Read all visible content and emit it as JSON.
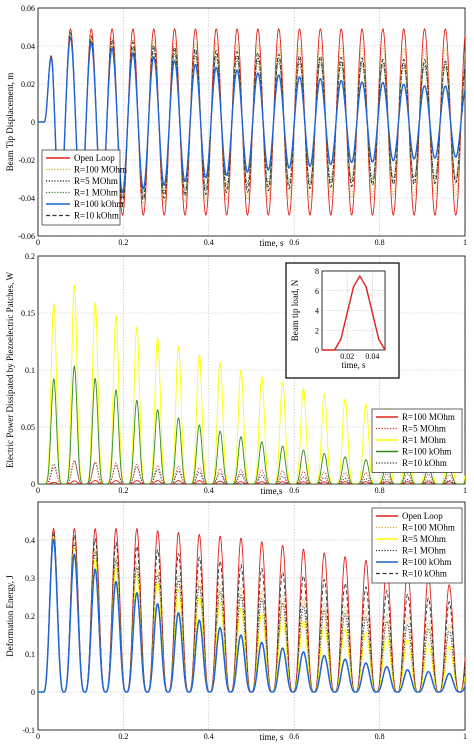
{
  "chart_data": [
    {
      "type": "line",
      "xlabel": "time, s",
      "ylabel": "Beam Tip Displacement, m",
      "xlim": [
        0,
        1
      ],
      "ylim": [
        -0.06,
        0.06
      ],
      "xticks": [
        "0",
        "0.2",
        "0.4",
        "0.6",
        "0.8",
        "1"
      ],
      "yticks": [
        "-0.06",
        "-0.04",
        "-0.02",
        "0",
        "0.02",
        "0.04",
        "0.06"
      ],
      "grid": true,
      "legend_position": "bottom-left",
      "oscillation_frequency_hz": 20.5,
      "series": [
        {
          "name": "Open Loop",
          "color": "#e0201b",
          "dash": "solid",
          "peak_values": [
            0.05,
            0.049,
            0.049,
            0.049,
            0.049,
            0.049,
            0.049,
            0.049,
            0.049,
            0.049,
            0.049,
            0.049,
            0.049,
            0.049,
            0.049,
            0.049,
            0.049,
            0.049,
            0.049,
            0.049,
            0.049
          ]
        },
        {
          "name": "R=100 MOhm",
          "color": "#d9a81e",
          "dash": "dotted",
          "peak_values": [
            0.05,
            0.048,
            0.046,
            0.045,
            0.044,
            0.043,
            0.043,
            0.042,
            0.042,
            0.041,
            0.041,
            0.041,
            0.04,
            0.04,
            0.04,
            0.04,
            0.04,
            0.039,
            0.039,
            0.039,
            0.039
          ]
        },
        {
          "name": "R=5 MOhm",
          "color": "#222222",
          "dash": "dotted",
          "peak_values": [
            0.05,
            0.047,
            0.044,
            0.042,
            0.04,
            0.039,
            0.038,
            0.037,
            0.036,
            0.035,
            0.034,
            0.034,
            0.033,
            0.033,
            0.032,
            0.032,
            0.032,
            0.031,
            0.031,
            0.031,
            0.031
          ]
        },
        {
          "name": "R=1 MOhm",
          "color": "#3a7d2a",
          "dash": "dotted",
          "peak_values": [
            0.05,
            0.047,
            0.044,
            0.041,
            0.039,
            0.037,
            0.036,
            0.035,
            0.034,
            0.033,
            0.032,
            0.032,
            0.031,
            0.031,
            0.03,
            0.03,
            0.03,
            0.029,
            0.029,
            0.029,
            0.029
          ]
        },
        {
          "name": "R=100 kOhm",
          "color": "#1e64d2",
          "dash": "solid",
          "peak_values": [
            0.05,
            0.046,
            0.043,
            0.04,
            0.037,
            0.035,
            0.033,
            0.031,
            0.029,
            0.028,
            0.026,
            0.025,
            0.024,
            0.023,
            0.022,
            0.021,
            0.021,
            0.02,
            0.019,
            0.019,
            0.018
          ]
        },
        {
          "name": "R=10 kOhm",
          "color": "#333333",
          "dash": "dashed",
          "peak_values": [
            0.05,
            0.048,
            0.046,
            0.044,
            0.043,
            0.041,
            0.04,
            0.039,
            0.038,
            0.037,
            0.037,
            0.036,
            0.035,
            0.035,
            0.034,
            0.034,
            0.033,
            0.033,
            0.033,
            0.032,
            0.032
          ]
        }
      ]
    },
    {
      "type": "line",
      "xlabel": "time,s",
      "ylabel": "Electric Power Dissipated by Piezoelectric Patches, W",
      "xlim": [
        0,
        1
      ],
      "ylim": [
        0,
        0.2
      ],
      "xticks": [
        "0",
        "0.2",
        "0.4",
        "0.6",
        "0.8",
        "1"
      ],
      "yticks": [
        "0",
        "0.05",
        "0.1",
        "0.15",
        "0.2"
      ],
      "grid": true,
      "legend_position": "bottom-right",
      "series": [
        {
          "name": "R=100 MOhm",
          "color": "#e0201b",
          "dash": "solid",
          "peak_values": [
            0.0,
            0.002,
            0.003,
            0.003,
            0.003,
            0.003,
            0.003,
            0.003,
            0.003,
            0.002,
            0.002,
            0.002,
            0.002,
            0.002,
            0.002,
            0.002,
            0.002,
            0.002,
            0.002,
            0.002,
            0.002
          ]
        },
        {
          "name": "R=5 MOhm",
          "color": "#e0201b",
          "dash": "dotted",
          "peak_values": [
            0.0,
            0.02,
            0.02,
            0.019,
            0.018,
            0.017,
            0.016,
            0.015,
            0.014,
            0.013,
            0.012,
            0.012,
            0.011,
            0.011,
            0.01,
            0.01,
            0.009,
            0.009,
            0.009,
            0.008,
            0.008
          ]
        },
        {
          "name": "R=1 MOhm",
          "color": "#ffff00",
          "dash": "solid",
          "peak_values": [
            0.07,
            0.19,
            0.168,
            0.155,
            0.144,
            0.134,
            0.125,
            0.117,
            0.11,
            0.103,
            0.097,
            0.091,
            0.086,
            0.081,
            0.076,
            0.072,
            0.068,
            0.064,
            0.06,
            0.057,
            0.054
          ]
        },
        {
          "name": "R=100 kOhm",
          "color": "#2e8b1e",
          "dash": "solid",
          "peak_values": [
            0.04,
            0.111,
            0.1,
            0.089,
            0.079,
            0.07,
            0.062,
            0.055,
            0.049,
            0.044,
            0.039,
            0.035,
            0.031,
            0.028,
            0.025,
            0.022,
            0.02,
            0.018,
            0.016,
            0.015,
            0.013
          ]
        },
        {
          "name": "R=10 kOhm",
          "color": "#333333",
          "dash": "dotted",
          "peak_values": [
            0.005,
            0.022,
            0.02,
            0.018,
            0.016,
            0.014,
            0.012,
            0.011,
            0.01,
            0.009,
            0.008,
            0.007,
            0.006,
            0.006,
            0.005,
            0.005,
            0.004,
            0.004,
            0.004,
            0.003,
            0.003
          ]
        }
      ]
    },
    {
      "type": "line",
      "xlabel": "time, s",
      "ylabel": "Beam tip load, N",
      "xlim": [
        0,
        0.05
      ],
      "ylim": [
        0,
        8
      ],
      "xticks": [
        "0.02",
        "0.04"
      ],
      "yticks": [
        "0",
        "2",
        "4",
        "6",
        "8"
      ],
      "grid": true,
      "inset": true,
      "series": [
        {
          "name": "",
          "color": "#e0201b",
          "x": [
            0,
            0.01,
            0.015,
            0.02,
            0.025,
            0.03,
            0.035,
            0.04,
            0.045,
            0.05
          ],
          "y": [
            0,
            0,
            1.1,
            3.75,
            6.4,
            7.5,
            6.4,
            3.75,
            1.1,
            0
          ]
        }
      ]
    },
    {
      "type": "line",
      "xlabel": "time, s",
      "ylabel": "Deformation Energy, J",
      "xlim": [
        0,
        1
      ],
      "ylim": [
        -0.1,
        0.5
      ],
      "xticks": [
        "0",
        "0.2",
        "0.4",
        "0.6",
        "0.8",
        "1"
      ],
      "yticks": [
        "-0.1",
        "0",
        "0.1",
        "0.2",
        "0.3",
        "0.4"
      ],
      "grid": true,
      "legend_position": "top-right",
      "series": [
        {
          "name": "Open Loop",
          "color": "#e0201b",
          "dash": "solid",
          "peak_values": [
            0.43,
            0.43,
            0.43,
            0.43,
            0.43,
            0.43,
            0.42,
            0.42,
            0.41,
            0.41,
            0.4,
            0.39,
            0.38,
            0.37,
            0.36,
            0.35,
            0.34,
            0.33,
            0.31,
            0.29,
            0.26
          ]
        },
        {
          "name": "R=100 MOhm",
          "color": "#d9a81e",
          "dash": "dotted",
          "peak_values": [
            0.43,
            0.41,
            0.39,
            0.37,
            0.35,
            0.33,
            0.32,
            0.3,
            0.29,
            0.28,
            0.27,
            0.26,
            0.25,
            0.24,
            0.23,
            0.22,
            0.21,
            0.2,
            0.19,
            0.18,
            0.17
          ]
        },
        {
          "name": "R=5 MOhm",
          "color": "#ffff00",
          "dash": "solid",
          "peak_values": [
            0.43,
            0.4,
            0.37,
            0.34,
            0.32,
            0.3,
            0.28,
            0.26,
            0.24,
            0.23,
            0.21,
            0.2,
            0.19,
            0.18,
            0.17,
            0.16,
            0.15,
            0.14,
            0.13,
            0.12,
            0.12
          ]
        },
        {
          "name": "R=1 MOhm",
          "color": "#333333",
          "dash": "dotted",
          "peak_values": [
            0.43,
            0.41,
            0.38,
            0.36,
            0.34,
            0.32,
            0.3,
            0.29,
            0.27,
            0.26,
            0.25,
            0.24,
            0.23,
            0.22,
            0.21,
            0.2,
            0.19,
            0.18,
            0.17,
            0.16,
            0.16
          ]
        },
        {
          "name": "R=100 kOhm",
          "color": "#1e64d2",
          "dash": "solid",
          "peak_values": [
            0.43,
            0.39,
            0.35,
            0.31,
            0.28,
            0.25,
            0.22,
            0.2,
            0.18,
            0.16,
            0.14,
            0.12,
            0.11,
            0.1,
            0.09,
            0.08,
            0.07,
            0.06,
            0.055,
            0.05,
            0.045
          ]
        },
        {
          "name": "R=10 kOhm",
          "color": "#333333",
          "dash": "dashed",
          "peak_values": [
            0.43,
            0.42,
            0.41,
            0.4,
            0.39,
            0.38,
            0.37,
            0.36,
            0.35,
            0.34,
            0.33,
            0.32,
            0.31,
            0.3,
            0.29,
            0.28,
            0.27,
            0.26,
            0.25,
            0.24,
            0.23
          ]
        }
      ]
    }
  ]
}
